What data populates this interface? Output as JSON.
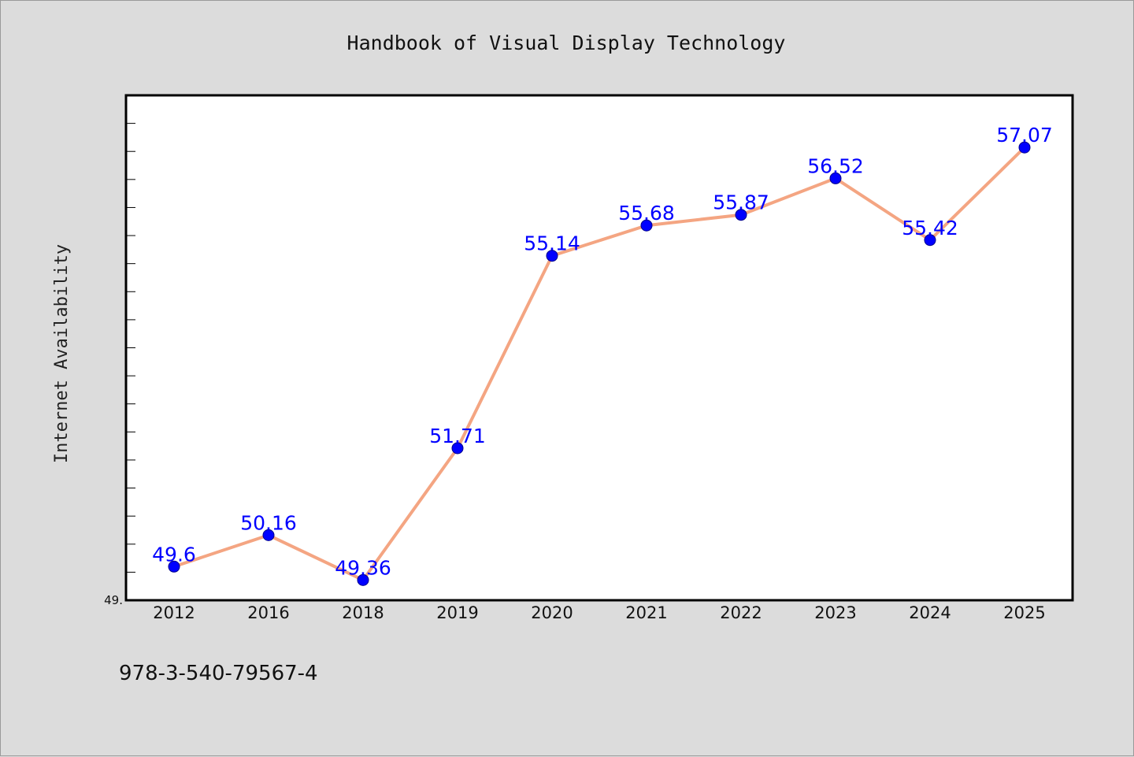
{
  "chart_data": {
    "type": "line",
    "title": "Handbook of Visual Display Technology",
    "xlabel": "",
    "ylabel": "Internet Availability",
    "categories": [
      "2012",
      "2016",
      "2018",
      "2019",
      "2020",
      "2021",
      "2022",
      "2023",
      "2024",
      "2025"
    ],
    "series": [
      {
        "values": [
          49.6,
          50.16,
          49.36,
          51.71,
          55.14,
          55.68,
          55.87,
          56.52,
          55.42,
          57.07
        ],
        "data_labels": [
          "49.6",
          "50.16",
          "49.36",
          "51.71",
          "55.14",
          "55.68",
          "55.87",
          "56.52",
          "55.42",
          "57.07"
        ]
      }
    ],
    "ylim": [
      49.0,
      58.0
    ],
    "y_tick_label": "49.",
    "grid": false,
    "line_color": "#f4a582",
    "marker_color": "#0000ff",
    "label_color": "#0000ff"
  },
  "footer": {
    "isbn": "978-3-540-79567-4"
  }
}
